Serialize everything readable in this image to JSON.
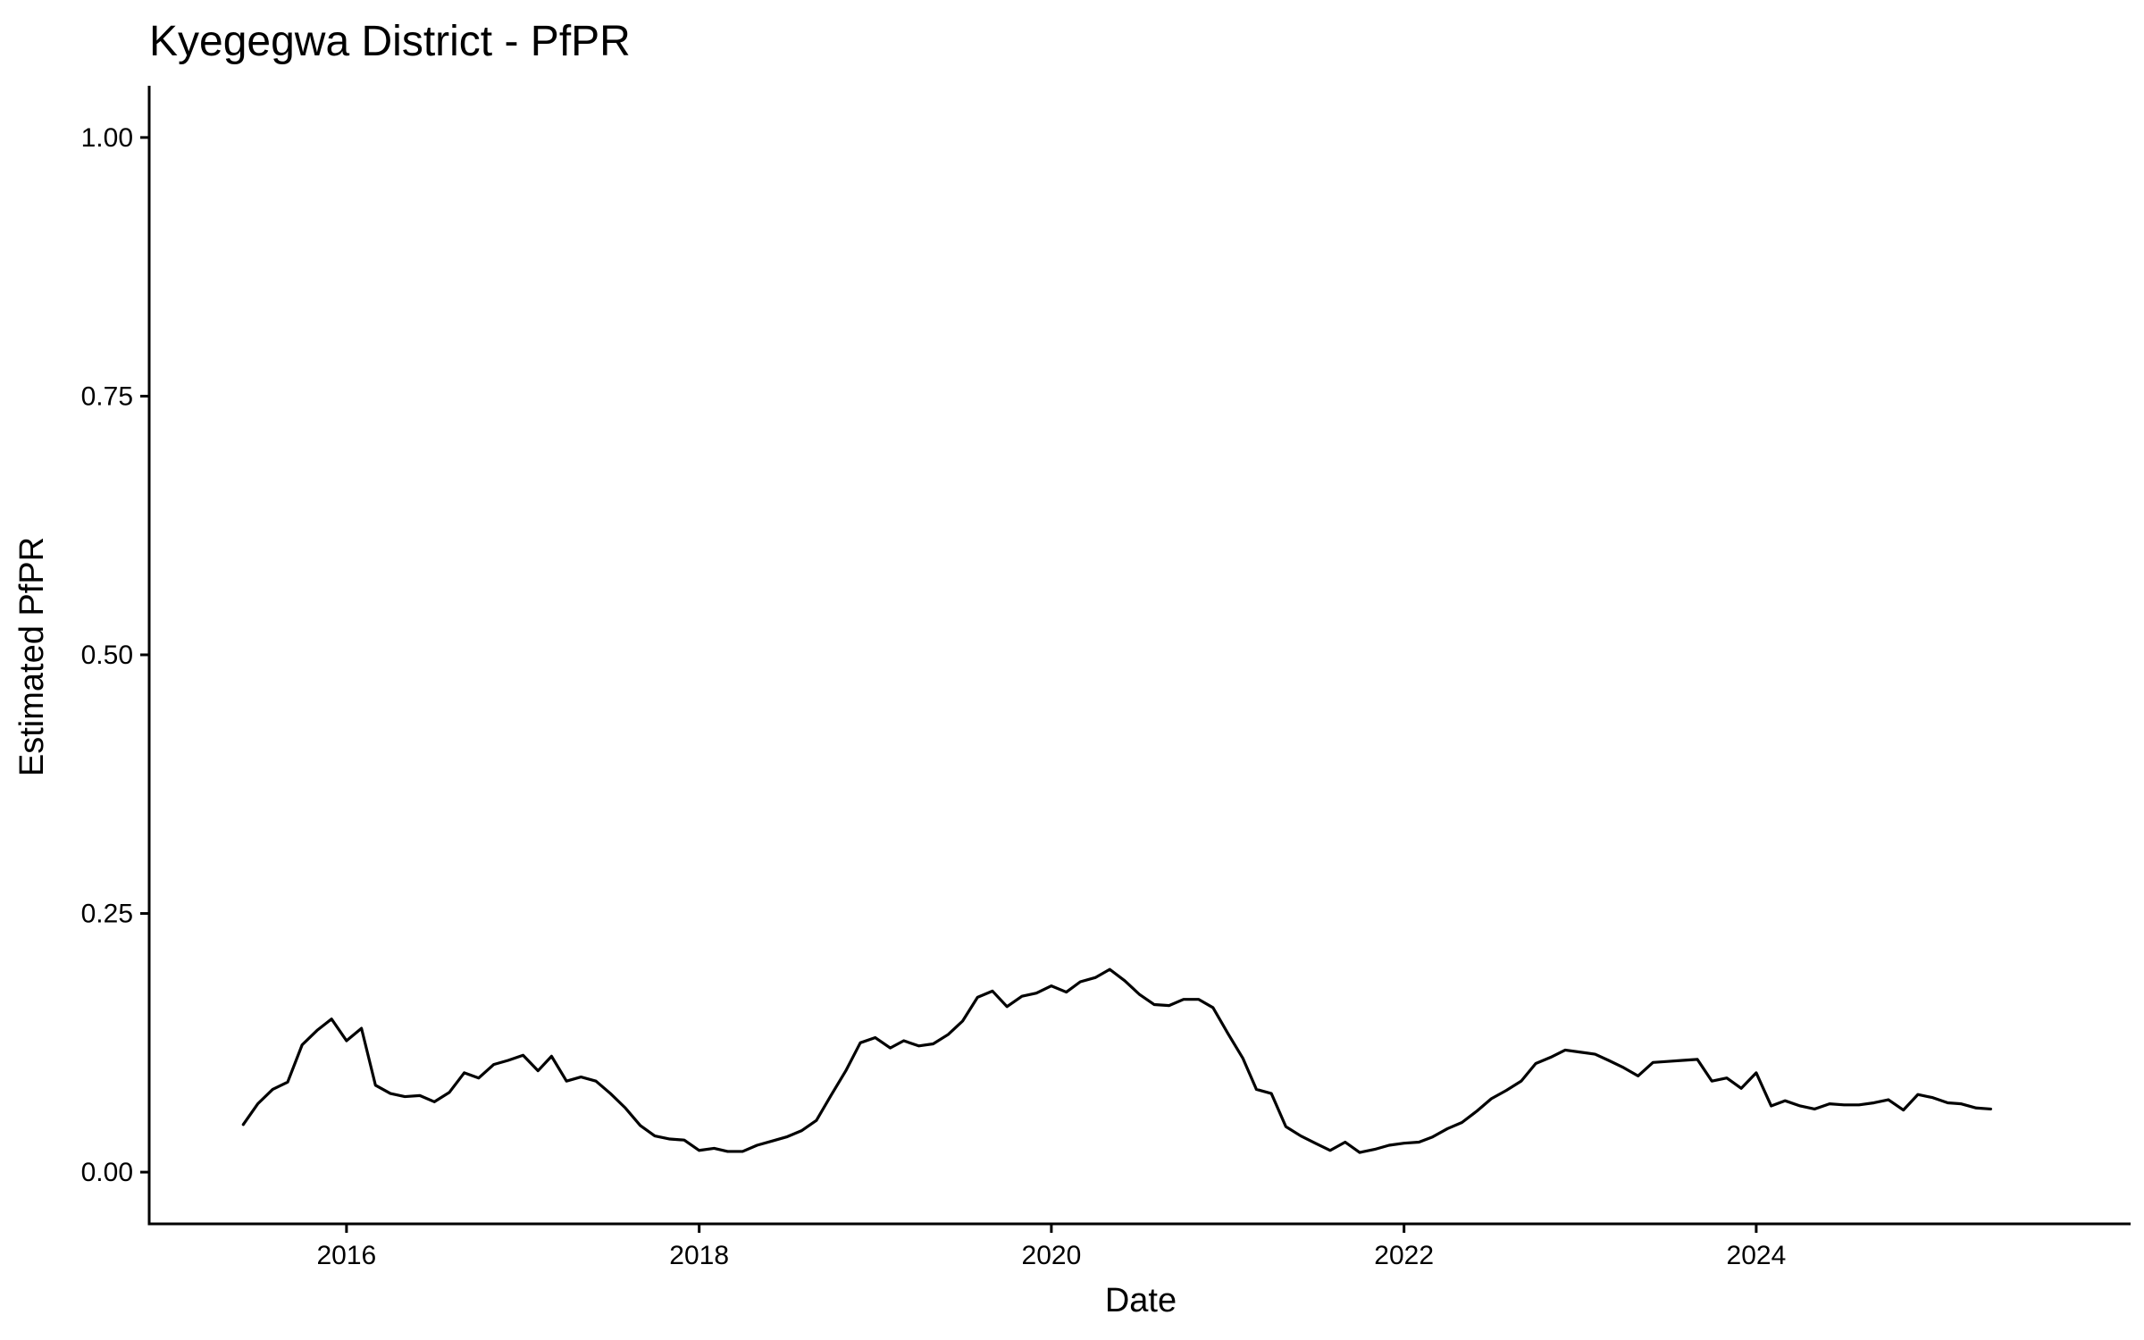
{
  "chart_data": {
    "type": "line",
    "title": "Kyegegwa District - PfPR",
    "xlabel": "Date",
    "ylabel": "Estimated PfPR",
    "x_range": [
      "2014-11-18",
      "2026-02-15"
    ],
    "ylim": [
      -0.05,
      1.05
    ],
    "x_ticks": [
      {
        "label": "2016",
        "date": "2016-01-01"
      },
      {
        "label": "2018",
        "date": "2018-01-01"
      },
      {
        "label": "2020",
        "date": "2020-01-01"
      },
      {
        "label": "2022",
        "date": "2022-01-01"
      },
      {
        "label": "2024",
        "date": "2024-01-01"
      }
    ],
    "y_ticks": [
      {
        "label": "0.00",
        "value": 0.0
      },
      {
        "label": "0.25",
        "value": 0.25
      },
      {
        "label": "0.50",
        "value": 0.5
      },
      {
        "label": "0.75",
        "value": 0.75
      },
      {
        "label": "1.00",
        "value": 1.0
      }
    ],
    "grid": false,
    "legend": "none",
    "series": [
      {
        "color": "#000000",
        "points": [
          [
            "2015-06-01",
            0.046
          ],
          [
            "2015-07-01",
            0.066
          ],
          [
            "2015-08-01",
            0.08
          ],
          [
            "2015-09-01",
            0.087
          ],
          [
            "2015-10-01",
            0.123
          ],
          [
            "2015-11-01",
            0.137
          ],
          [
            "2015-12-01",
            0.148
          ],
          [
            "2016-01-01",
            0.127
          ],
          [
            "2016-02-01",
            0.139
          ],
          [
            "2016-03-01",
            0.084
          ],
          [
            "2016-04-01",
            0.076
          ],
          [
            "2016-05-01",
            0.073
          ],
          [
            "2016-06-01",
            0.074
          ],
          [
            "2016-07-01",
            0.068
          ],
          [
            "2016-08-01",
            0.077
          ],
          [
            "2016-09-01",
            0.096
          ],
          [
            "2016-10-01",
            0.091
          ],
          [
            "2016-11-01",
            0.104
          ],
          [
            "2016-12-01",
            0.108
          ],
          [
            "2017-01-01",
            0.113
          ],
          [
            "2017-02-01",
            0.098
          ],
          [
            "2017-03-01",
            0.112
          ],
          [
            "2017-04-01",
            0.088
          ],
          [
            "2017-05-01",
            0.092
          ],
          [
            "2017-06-01",
            0.088
          ],
          [
            "2017-07-01",
            0.076
          ],
          [
            "2017-08-01",
            0.062
          ],
          [
            "2017-09-01",
            0.045
          ],
          [
            "2017-10-01",
            0.035
          ],
          [
            "2017-11-01",
            0.032
          ],
          [
            "2017-12-01",
            0.031
          ],
          [
            "2018-01-01",
            0.021
          ],
          [
            "2018-02-01",
            0.023
          ],
          [
            "2018-03-01",
            0.02
          ],
          [
            "2018-04-01",
            0.02
          ],
          [
            "2018-05-01",
            0.026
          ],
          [
            "2018-06-01",
            0.03
          ],
          [
            "2018-07-01",
            0.034
          ],
          [
            "2018-08-01",
            0.04
          ],
          [
            "2018-09-01",
            0.05
          ],
          [
            "2018-10-01",
            0.074
          ],
          [
            "2018-11-01",
            0.098
          ],
          [
            "2018-12-01",
            0.125
          ],
          [
            "2019-01-01",
            0.13
          ],
          [
            "2019-02-01",
            0.12
          ],
          [
            "2019-03-01",
            0.127
          ],
          [
            "2019-04-01",
            0.122
          ],
          [
            "2019-05-01",
            0.124
          ],
          [
            "2019-06-01",
            0.133
          ],
          [
            "2019-07-01",
            0.146
          ],
          [
            "2019-08-01",
            0.169
          ],
          [
            "2019-09-01",
            0.175
          ],
          [
            "2019-10-01",
            0.16
          ],
          [
            "2019-11-01",
            0.17
          ],
          [
            "2019-12-01",
            0.173
          ],
          [
            "2020-01-01",
            0.18
          ],
          [
            "2020-02-01",
            0.174
          ],
          [
            "2020-03-01",
            0.184
          ],
          [
            "2020-04-01",
            0.188
          ],
          [
            "2020-05-01",
            0.196
          ],
          [
            "2020-06-01",
            0.185
          ],
          [
            "2020-07-01",
            0.172
          ],
          [
            "2020-08-01",
            0.162
          ],
          [
            "2020-09-01",
            0.161
          ],
          [
            "2020-10-01",
            0.167
          ],
          [
            "2020-11-01",
            0.167
          ],
          [
            "2020-12-01",
            0.159
          ],
          [
            "2021-01-01",
            0.134
          ],
          [
            "2021-02-01",
            0.11
          ],
          [
            "2021-03-01",
            0.08
          ],
          [
            "2021-04-01",
            0.076
          ],
          [
            "2021-05-01",
            0.044
          ],
          [
            "2021-06-01",
            0.035
          ],
          [
            "2021-07-01",
            0.028
          ],
          [
            "2021-08-01",
            0.021
          ],
          [
            "2021-09-01",
            0.029
          ],
          [
            "2021-10-01",
            0.019
          ],
          [
            "2021-11-01",
            0.022
          ],
          [
            "2021-12-01",
            0.026
          ],
          [
            "2022-01-01",
            0.028
          ],
          [
            "2022-02-01",
            0.029
          ],
          [
            "2022-03-01",
            0.034
          ],
          [
            "2022-04-01",
            0.042
          ],
          [
            "2022-05-01",
            0.048
          ],
          [
            "2022-06-01",
            0.059
          ],
          [
            "2022-07-01",
            0.071
          ],
          [
            "2022-08-01",
            0.079
          ],
          [
            "2022-09-01",
            0.088
          ],
          [
            "2022-10-01",
            0.105
          ],
          [
            "2022-11-01",
            0.111
          ],
          [
            "2022-12-01",
            0.118
          ],
          [
            "2023-01-01",
            0.116
          ],
          [
            "2023-02-01",
            0.114
          ],
          [
            "2023-03-01",
            0.108
          ],
          [
            "2023-04-01",
            0.101
          ],
          [
            "2023-05-01",
            0.093
          ],
          [
            "2023-06-01",
            0.106
          ],
          [
            "2023-07-01",
            0.107
          ],
          [
            "2023-08-01",
            0.108
          ],
          [
            "2023-09-01",
            0.109
          ],
          [
            "2023-10-01",
            0.088
          ],
          [
            "2023-11-01",
            0.091
          ],
          [
            "2023-12-01",
            0.081
          ],
          [
            "2024-01-01",
            0.096
          ],
          [
            "2024-02-01",
            0.064
          ],
          [
            "2024-03-01",
            0.069
          ],
          [
            "2024-04-01",
            0.064
          ],
          [
            "2024-05-01",
            0.061
          ],
          [
            "2024-06-01",
            0.066
          ],
          [
            "2024-07-01",
            0.065
          ],
          [
            "2024-08-01",
            0.065
          ],
          [
            "2024-09-01",
            0.067
          ],
          [
            "2024-10-01",
            0.07
          ],
          [
            "2024-11-01",
            0.06
          ],
          [
            "2024-12-01",
            0.075
          ],
          [
            "2025-01-01",
            0.072
          ],
          [
            "2025-02-01",
            0.067
          ],
          [
            "2025-03-01",
            0.066
          ],
          [
            "2025-04-01",
            0.062
          ],
          [
            "2025-05-01",
            0.061
          ]
        ]
      }
    ]
  }
}
